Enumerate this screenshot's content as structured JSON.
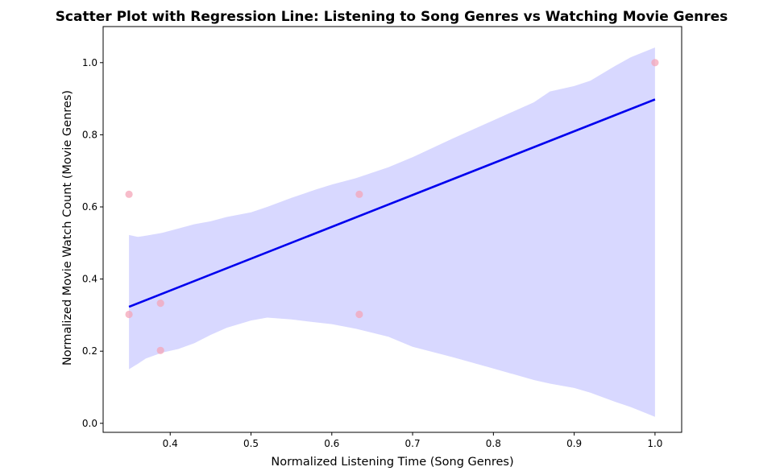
{
  "chart_data": {
    "type": "scatter",
    "title": "Scatter Plot with Regression Line: Listening to Song Genres vs Watching Movie Genres",
    "xlabel": "Normalized Listening Time (Song Genres)",
    "ylabel": "Normalized Movie Watch Count (Movie Genres)",
    "xlim": [
      0.317,
      1.033
    ],
    "ylim": [
      -0.025,
      1.1
    ],
    "xticks": [
      "0.4",
      "0.5",
      "0.6",
      "0.7",
      "0.8",
      "0.9",
      "1.0"
    ],
    "yticks": [
      "0.0",
      "0.2",
      "0.4",
      "0.6",
      "0.8",
      "1.0"
    ],
    "grid": false,
    "points": {
      "color": "#f4a6b8",
      "x": [
        0.349,
        0.349,
        0.388,
        0.388,
        0.634,
        0.634,
        1.0
      ],
      "y": [
        0.635,
        0.302,
        0.333,
        0.202,
        0.635,
        0.302,
        1.0
      ]
    },
    "regression": {
      "color": "#0000ee",
      "x": [
        0.349,
        1.0
      ],
      "y": [
        0.323,
        0.898
      ]
    },
    "confidence_band": {
      "color": "#d8d8ff",
      "x": [
        0.349,
        0.36,
        0.37,
        0.39,
        0.41,
        0.43,
        0.45,
        0.47,
        0.5,
        0.52,
        0.55,
        0.58,
        0.6,
        0.63,
        0.67,
        0.7,
        0.75,
        0.8,
        0.85,
        0.87,
        0.9,
        0.92,
        0.95,
        0.97,
        1.0
      ],
      "upper": [
        0.522,
        0.517,
        0.52,
        0.528,
        0.54,
        0.552,
        0.56,
        0.572,
        0.585,
        0.6,
        0.625,
        0.648,
        0.662,
        0.68,
        0.71,
        0.738,
        0.79,
        0.84,
        0.89,
        0.92,
        0.935,
        0.95,
        0.99,
        1.015,
        1.042
      ],
      "lower": [
        0.15,
        0.165,
        0.18,
        0.196,
        0.206,
        0.222,
        0.245,
        0.265,
        0.285,
        0.293,
        0.288,
        0.28,
        0.275,
        0.262,
        0.24,
        0.212,
        0.183,
        0.152,
        0.12,
        0.11,
        0.098,
        0.085,
        0.06,
        0.045,
        0.018
      ]
    }
  }
}
